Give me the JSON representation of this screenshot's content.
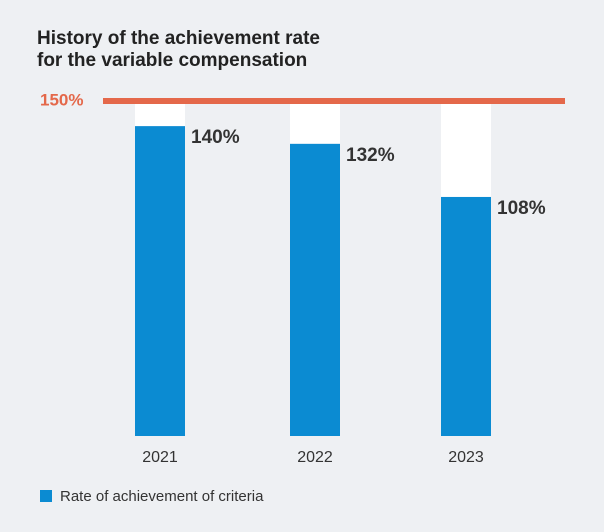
{
  "chart_data": {
    "type": "bar",
    "title": "History of the achievement rate\nfor the variable compensation",
    "categories": [
      "2021",
      "2022",
      "2023"
    ],
    "series": [
      {
        "name": "Rate of achievement of criteria",
        "color": "#0b8bd2",
        "values": [
          140,
          132,
          108
        ],
        "value_labels": [
          "140%",
          "132%",
          "108%"
        ]
      }
    ],
    "reference_line": {
      "value": 150,
      "label": "150%",
      "color": "#e4684a"
    },
    "ylim": [
      0,
      150
    ]
  }
}
